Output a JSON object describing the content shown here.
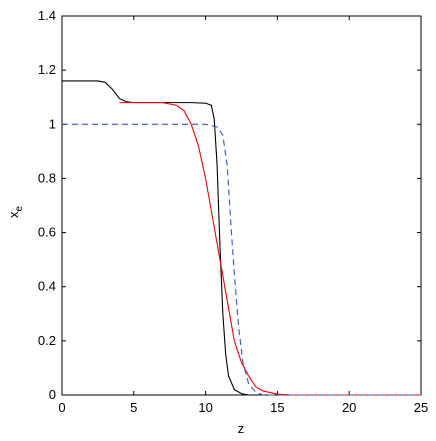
{
  "chart_data": {
    "type": "line",
    "xlabel": "z",
    "ylabel": {
      "text": "x",
      "subscript": "e"
    },
    "xlim": [
      0,
      25
    ],
    "xticks": [
      0,
      5,
      10,
      15,
      20,
      25
    ],
    "ylim": [
      0,
      1.4
    ],
    "yticks": [
      0,
      0.2,
      0.4,
      0.6,
      0.8,
      1,
      1.2,
      1.4
    ],
    "series": [
      {
        "color": "#000000",
        "dash": false,
        "x": [
          0,
          2.5,
          3,
          3.5,
          4,
          4.5,
          5,
          9,
          10,
          10.4,
          10.6,
          10.8,
          11,
          11.2,
          11.4,
          11.6,
          12,
          12.5,
          13,
          25
        ],
        "values": [
          1.16,
          1.16,
          1.155,
          1.13,
          1.095,
          1.083,
          1.08,
          1.08,
          1.078,
          1.07,
          1.02,
          0.85,
          0.55,
          0.3,
          0.15,
          0.07,
          0.02,
          0.005,
          0,
          0
        ]
      },
      {
        "color": "#ff0000",
        "dash": false,
        "x": [
          4,
          7,
          8,
          8.5,
          9,
          9.5,
          10,
          10.5,
          11,
          11.5,
          12,
          12.5,
          13,
          13.5,
          14,
          15,
          16,
          25
        ],
        "values": [
          1.08,
          1.08,
          1.07,
          1.05,
          1.0,
          0.92,
          0.8,
          0.65,
          0.5,
          0.35,
          0.2,
          0.12,
          0.07,
          0.03,
          0.015,
          0.003,
          0,
          0
        ]
      },
      {
        "color": "#3355cc",
        "dash": true,
        "x": [
          0,
          10,
          10.8,
          11.2,
          11.5,
          11.8,
          12,
          12.3,
          12.6,
          13,
          13.5,
          14,
          25
        ],
        "values": [
          1.0,
          1.0,
          0.99,
          0.96,
          0.85,
          0.6,
          0.45,
          0.25,
          0.12,
          0.04,
          0.01,
          0,
          0
        ]
      }
    ]
  }
}
